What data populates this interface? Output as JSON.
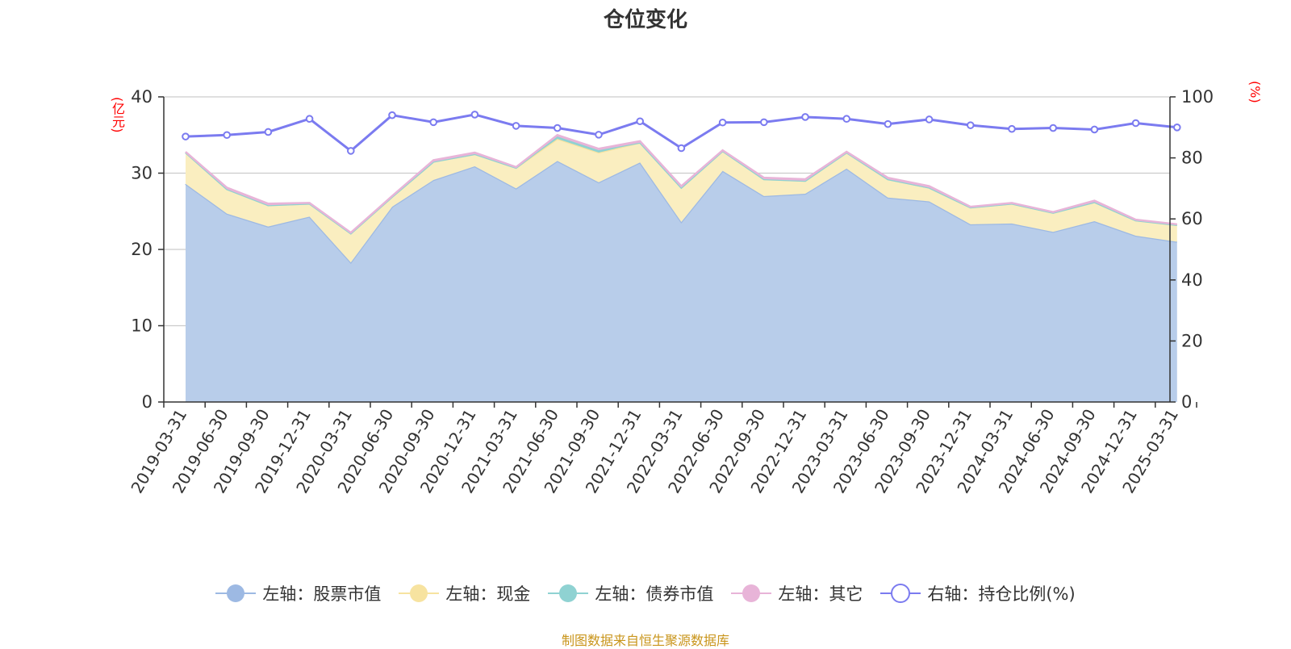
{
  "title": "仓位变化",
  "left_unit": "(亿元)",
  "right_unit": "(%)",
  "source": "制图数据来自恒生聚源数据库",
  "colors": {
    "stock": "#9db9e3",
    "stock_fill": "#b8cdea",
    "cash": "#f7e3a0",
    "cash_fill": "#faeec0",
    "bond": "#8fd2d2",
    "other": "#e8b4d8",
    "ratio": "#7b7bf0",
    "grid": "#cccccc",
    "axis": "#333333",
    "unit": "#ff0000",
    "source": "#c9951b"
  },
  "legend": [
    {
      "label": "左轴：股票市值",
      "key": "stock",
      "icon": "filled-circle-icon"
    },
    {
      "label": "左轴：现金",
      "key": "cash",
      "icon": "filled-circle-icon"
    },
    {
      "label": "左轴：债券市值",
      "key": "bond",
      "icon": "filled-circle-icon"
    },
    {
      "label": "左轴：其它",
      "key": "other",
      "icon": "filled-circle-icon"
    },
    {
      "label": "右轴：持仓比例(%)",
      "key": "ratio",
      "icon": "hollow-circle-icon"
    }
  ],
  "chart_data": {
    "type": "area",
    "stacked": true,
    "categories": [
      "2019-03-31",
      "2019-06-30",
      "2019-09-30",
      "2019-12-31",
      "2020-03-31",
      "2020-06-30",
      "2020-09-30",
      "2020-12-31",
      "2021-03-31",
      "2021-06-30",
      "2021-09-30",
      "2021-12-31",
      "2022-03-31",
      "2022-06-30",
      "2022-09-30",
      "2022-12-31",
      "2023-03-31",
      "2023-06-30",
      "2023-09-30",
      "2023-12-31",
      "2024-03-31",
      "2024-06-30",
      "2024-09-30",
      "2024-12-31",
      "2025-03-31"
    ],
    "y_left": {
      "min": 0,
      "max": 40,
      "ticks": [
        0,
        10,
        20,
        30,
        40
      ]
    },
    "y_right": {
      "min": 0,
      "max": 100,
      "ticks": [
        0,
        20,
        40,
        60,
        80,
        100
      ]
    },
    "grid": true,
    "legend_position": "bottom",
    "series": [
      {
        "name": "左轴：股票市值",
        "key": "stock",
        "axis": "left",
        "values": [
          28.6,
          24.7,
          23.0,
          24.3,
          18.3,
          25.6,
          29.1,
          30.9,
          28.0,
          31.6,
          28.8,
          31.4,
          23.6,
          30.3,
          27.0,
          27.3,
          30.6,
          26.8,
          26.3,
          23.3,
          23.4,
          22.3,
          23.7,
          21.8,
          21.0
        ]
      },
      {
        "name": "左轴：现金",
        "key": "cash",
        "axis": "left",
        "values": [
          4.1,
          3.2,
          2.8,
          1.7,
          3.8,
          1.3,
          2.4,
          1.6,
          2.7,
          2.9,
          3.9,
          2.6,
          4.5,
          2.6,
          2.2,
          1.7,
          2.1,
          2.4,
          1.8,
          2.2,
          2.6,
          2.5,
          2.5,
          2.0,
          2.2
        ]
      },
      {
        "name": "左轴：债券市值",
        "key": "bond",
        "axis": "left",
        "values": [
          0,
          0,
          0,
          0,
          0,
          0,
          0,
          0,
          0,
          0.3,
          0.3,
          0,
          0,
          0,
          0,
          0,
          0,
          0,
          0,
          0,
          0,
          0,
          0,
          0,
          0
        ]
      },
      {
        "name": "左轴：其它",
        "key": "other",
        "axis": "left",
        "values": [
          0.1,
          0.2,
          0.2,
          0.1,
          0.1,
          0.1,
          0.2,
          0.2,
          0.1,
          0.2,
          0.2,
          0.2,
          0.2,
          0.1,
          0.2,
          0.2,
          0.1,
          0.2,
          0.2,
          0.1,
          0.1,
          0.1,
          0.2,
          0.1,
          0.1
        ]
      },
      {
        "name": "右轴：持仓比例(%)",
        "key": "ratio",
        "axis": "right",
        "type": "line",
        "values": [
          87.0,
          87.5,
          88.5,
          92.8,
          82.3,
          94.0,
          91.7,
          94.2,
          90.5,
          89.8,
          87.6,
          92.0,
          83.2,
          91.6,
          91.7,
          93.4,
          92.8,
          91.1,
          92.6,
          90.7,
          89.5,
          89.8,
          89.3,
          91.4,
          90.0
        ]
      }
    ]
  }
}
